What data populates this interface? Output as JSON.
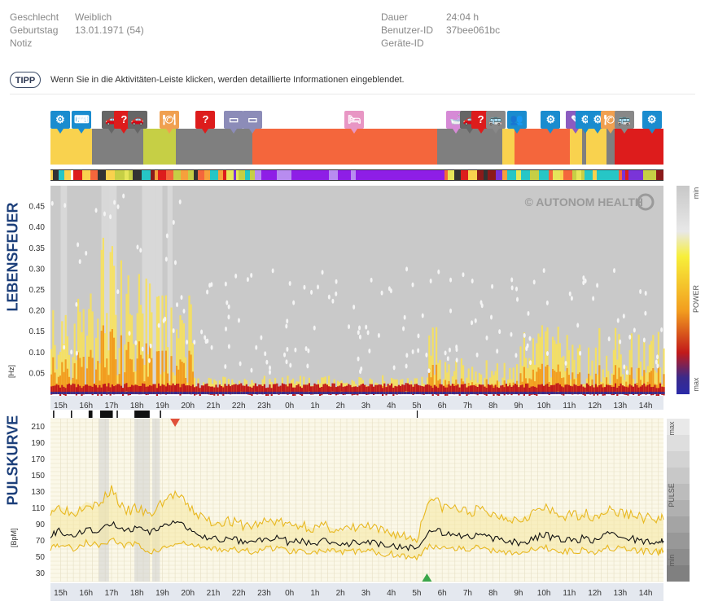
{
  "patient": {
    "sex_label": "Geschlecht",
    "sex_value": "Weiblich",
    "birthday_label": "Geburtstag",
    "birthday_value": "13.01.1971 (54)",
    "note_label": "Notiz",
    "duration_label": "Dauer",
    "duration_value": "24:04 h",
    "user_id_label": "Benutzer-ID",
    "user_id_value": "37bee061bc",
    "device_id_label": "Geräte-ID"
  },
  "tip": {
    "badge": "TIPP",
    "text": "Wenn Sie in die Aktivitäten-Leiste klicken, werden detaillierte Informationen eingeblendet."
  },
  "colors": {
    "yellow": "#f9d24e",
    "gray": "#7f7f7f",
    "lime": "#c6cf45",
    "orange": "#f4663c",
    "red": "#dd1c1c",
    "navy": "#1c3f7a",
    "pulse_line": "#111111",
    "pulse_band": "#e8b820"
  },
  "activity_bar": {
    "segments": [
      {
        "start": 0,
        "end": 0.068,
        "color": "yellow"
      },
      {
        "start": 0.068,
        "end": 0.152,
        "color": "gray"
      },
      {
        "start": 0.152,
        "end": 0.204,
        "color": "lime"
      },
      {
        "start": 0.204,
        "end": 0.33,
        "color": "gray"
      },
      {
        "start": 0.33,
        "end": 0.631,
        "color": "orange"
      },
      {
        "start": 0.631,
        "end": 0.737,
        "color": "gray"
      },
      {
        "start": 0.737,
        "end": 0.757,
        "color": "yellow"
      },
      {
        "start": 0.757,
        "end": 0.847,
        "color": "orange"
      },
      {
        "start": 0.847,
        "end": 0.867,
        "color": "yellow"
      },
      {
        "start": 0.867,
        "end": 0.874,
        "color": "gray"
      },
      {
        "start": 0.874,
        "end": 0.907,
        "color": "yellow"
      },
      {
        "start": 0.907,
        "end": 0.92,
        "color": "gray"
      },
      {
        "start": 0.92,
        "end": 1.0,
        "color": "red"
      }
    ],
    "icons": [
      {
        "pos": 0.0,
        "name": "gear-head-icon",
        "glyph": "⚙",
        "color": "#1a8ccf"
      },
      {
        "pos": 0.035,
        "name": "keyboard-icon",
        "glyph": "⌨",
        "color": "#1a8ccf"
      },
      {
        "pos": 0.084,
        "name": "car-icon",
        "glyph": "🚗",
        "color": "#666666"
      },
      {
        "pos": 0.104,
        "name": "question-icon",
        "glyph": "?",
        "color": "#dd1c1c"
      },
      {
        "pos": 0.126,
        "name": "car-icon",
        "glyph": "🚗",
        "color": "#666666"
      },
      {
        "pos": 0.178,
        "name": "meal-icon",
        "glyph": "🍽",
        "color": "#f0a050"
      },
      {
        "pos": 0.237,
        "name": "question-icon",
        "glyph": "?",
        "color": "#dd1c1c"
      },
      {
        "pos": 0.283,
        "name": "rest-icon",
        "glyph": "▭",
        "color": "#8c8cb8"
      },
      {
        "pos": 0.314,
        "name": "rest-icon",
        "glyph": "▭",
        "color": "#8c8cb8"
      },
      {
        "pos": 0.48,
        "name": "bed-icon",
        "glyph": "🛏",
        "color": "#e896c4"
      },
      {
        "pos": 0.646,
        "name": "bath-icon",
        "glyph": "🛁",
        "color": "#d68ad6"
      },
      {
        "pos": 0.668,
        "name": "car-icon",
        "glyph": "🚗",
        "color": "#666666"
      },
      {
        "pos": 0.686,
        "name": "question-icon",
        "glyph": "?",
        "color": "#dd1c1c"
      },
      {
        "pos": 0.71,
        "name": "bus-icon",
        "glyph": "🚌",
        "color": "#888888"
      },
      {
        "pos": 0.745,
        "name": "meeting-icon",
        "glyph": "👥",
        "color": "#1a8ccf"
      },
      {
        "pos": 0.8,
        "name": "gear-head-icon",
        "glyph": "⚙",
        "color": "#1a8ccf"
      },
      {
        "pos": 0.84,
        "name": "pen-icon",
        "glyph": "✎",
        "color": "#8c5cc0"
      },
      {
        "pos": 0.857,
        "name": "gear-head-icon",
        "glyph": "⚙",
        "color": "#1a8ccf"
      },
      {
        "pos": 0.877,
        "name": "gear-head-icon",
        "glyph": "⚙",
        "color": "#1a8ccf"
      },
      {
        "pos": 0.898,
        "name": "meal-icon",
        "glyph": "🍽",
        "color": "#f0a050"
      },
      {
        "pos": 0.92,
        "name": "bus-icon",
        "glyph": "🚌",
        "color": "#888888"
      },
      {
        "pos": 0.965,
        "name": "gear-head-icon",
        "glyph": "⚙",
        "color": "#1a8ccf"
      }
    ]
  },
  "chart_data": [
    {
      "type": "heatmap",
      "title": "LEBENSFEUER",
      "ylabel": "[Hz]",
      "y_ticks": [
        "0.45",
        "0.40",
        "0.35",
        "0.30",
        "0.25",
        "0.20",
        "0.15",
        "0.10",
        "0.05"
      ],
      "ylim": [
        0,
        0.5
      ],
      "x_ticks": [
        "15h",
        "16h",
        "17h",
        "18h",
        "19h",
        "20h",
        "21h",
        "22h",
        "23h",
        "0h",
        "1h",
        "2h",
        "3h",
        "4h",
        "5h",
        "6h",
        "7h",
        "8h",
        "9h",
        "10h",
        "11h",
        "12h",
        "13h",
        "14h"
      ],
      "scale_labels": {
        "top": "min",
        "middle": "POWER",
        "bottom": "max"
      },
      "watermark": "© AUTONOM HEALTH"
    },
    {
      "type": "line",
      "title": "PULSKURVE",
      "ylabel": "[BpM]",
      "y_ticks": [
        "210",
        "190",
        "170",
        "150",
        "130",
        "110",
        "90",
        "70",
        "50",
        "30"
      ],
      "ylim": [
        20,
        220
      ],
      "x_ticks": [
        "15h",
        "16h",
        "17h",
        "18h",
        "19h",
        "20h",
        "21h",
        "22h",
        "23h",
        "0h",
        "1h",
        "2h",
        "3h",
        "4h",
        "5h",
        "6h",
        "7h",
        "8h",
        "9h",
        "10h",
        "11h",
        "12h",
        "13h",
        "14h"
      ],
      "scale_labels": {
        "top": "max",
        "middle": "PULSE",
        "bottom": "min"
      },
      "x_hours": [
        14.6,
        15.0,
        15.5,
        16.0,
        16.5,
        17.0,
        17.5,
        18.0,
        18.5,
        19.0,
        19.5,
        20.0,
        20.5,
        21.0,
        21.5,
        22.0,
        22.5,
        23.0,
        23.5,
        24.0,
        24.5,
        25.0,
        25.5,
        26.0,
        26.5,
        27.0,
        27.5,
        28.0,
        28.5,
        29.0,
        29.5,
        30.0,
        30.5,
        31.0,
        31.5,
        32.0,
        32.5,
        33.0,
        33.5,
        34.0,
        34.5,
        35.0,
        35.5,
        36.0,
        36.5,
        37.0,
        37.5,
        38.0,
        38.5,
        38.7
      ],
      "series": [
        {
          "name": "",
          "role": "upper",
          "values": [
            108,
            112,
            103,
            118,
            112,
            135,
            105,
            110,
            100,
            118,
            128,
            112,
            100,
            92,
            95,
            90,
            88,
            93,
            95,
            88,
            90,
            85,
            88,
            82,
            85,
            88,
            82,
            80,
            76,
            72,
            125,
            112,
            110,
            105,
            108,
            102,
            100,
            96,
            104,
            110,
            102,
            100,
            104,
            100,
            108,
            104,
            102,
            98,
            96,
            96
          ]
        },
        {
          "name": "",
          "role": "mean",
          "values": [
            78,
            82,
            75,
            86,
            80,
            92,
            80,
            86,
            78,
            90,
            95,
            84,
            76,
            72,
            72,
            70,
            68,
            72,
            74,
            68,
            70,
            67,
            70,
            66,
            68,
            70,
            66,
            64,
            62,
            60,
            86,
            80,
            78,
            74,
            77,
            72,
            70,
            67,
            72,
            78,
            72,
            70,
            73,
            70,
            78,
            74,
            72,
            69,
            68,
            70
          ]
        },
        {
          "name": "",
          "role": "lower",
          "values": [
            62,
            66,
            60,
            68,
            64,
            72,
            64,
            66,
            56,
            60,
            66,
            66,
            62,
            60,
            60,
            58,
            57,
            60,
            62,
            57,
            59,
            56,
            58,
            55,
            57,
            58,
            55,
            54,
            52,
            48,
            64,
            63,
            62,
            60,
            62,
            58,
            57,
            55,
            58,
            62,
            58,
            57,
            59,
            57,
            62,
            60,
            58,
            57,
            56,
            58
          ]
        }
      ],
      "markers": {
        "max_hour": 19.5,
        "min_hour": 29.4
      }
    }
  ]
}
